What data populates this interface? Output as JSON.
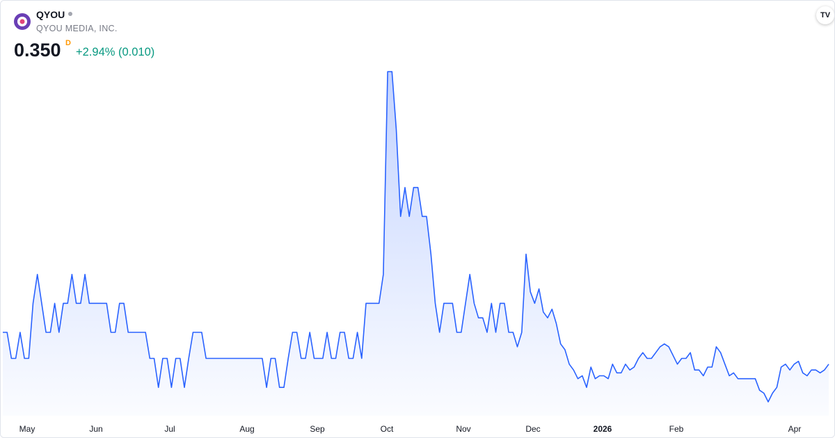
{
  "header": {
    "ticker": "QYOU",
    "company": "QYOU MEDIA, INC.",
    "price": "0.350",
    "interval": "D",
    "change": "+2.94% (0.010)"
  },
  "chart_data": {
    "type": "area",
    "x_axis_labels": [
      "May",
      "Jun",
      "Jul",
      "Aug",
      "Sep",
      "Oct",
      "Nov",
      "Dec",
      "2026",
      "Feb",
      "Apr"
    ],
    "color": "#2962ff",
    "values": [
      0.361,
      0.361,
      0.352,
      0.352,
      0.361,
      0.352,
      0.352,
      0.371,
      0.381,
      0.371,
      0.361,
      0.361,
      0.371,
      0.361,
      0.371,
      0.371,
      0.381,
      0.371,
      0.371,
      0.381,
      0.371,
      0.371,
      0.371,
      0.371,
      0.371,
      0.361,
      0.361,
      0.371,
      0.371,
      0.361,
      0.361,
      0.361,
      0.361,
      0.361,
      0.352,
      0.352,
      0.342,
      0.352,
      0.352,
      0.342,
      0.352,
      0.352,
      0.342,
      0.352,
      0.361,
      0.361,
      0.361,
      0.352,
      0.352,
      0.352,
      0.352,
      0.352,
      0.352,
      0.352,
      0.352,
      0.352,
      0.352,
      0.352,
      0.352,
      0.352,
      0.352,
      0.342,
      0.352,
      0.352,
      0.342,
      0.342,
      0.352,
      0.361,
      0.361,
      0.352,
      0.352,
      0.361,
      0.352,
      0.352,
      0.352,
      0.361,
      0.352,
      0.352,
      0.361,
      0.361,
      0.352,
      0.352,
      0.361,
      0.352,
      0.371,
      0.371,
      0.371,
      0.371,
      0.381,
      0.451,
      0.451,
      0.431,
      0.401,
      0.411,
      0.401,
      0.411,
      0.411,
      0.401,
      0.401,
      0.388,
      0.371,
      0.361,
      0.371,
      0.371,
      0.371,
      0.361,
      0.361,
      0.371,
      0.381,
      0.371,
      0.366,
      0.366,
      0.361,
      0.371,
      0.361,
      0.371,
      0.371,
      0.361,
      0.361,
      0.356,
      0.361,
      0.388,
      0.375,
      0.371,
      0.376,
      0.368,
      0.366,
      0.369,
      0.364,
      0.357,
      0.355,
      0.35,
      0.348,
      0.345,
      0.346,
      0.342,
      0.349,
      0.345,
      0.346,
      0.346,
      0.345,
      0.35,
      0.347,
      0.347,
      0.35,
      0.348,
      0.349,
      0.352,
      0.354,
      0.352,
      0.352,
      0.354,
      0.356,
      0.357,
      0.356,
      0.353,
      0.35,
      0.352,
      0.352,
      0.354,
      0.348,
      0.348,
      0.346,
      0.349,
      0.349,
      0.356,
      0.354,
      0.35,
      0.346,
      0.347,
      0.345,
      0.345,
      0.345,
      0.345,
      0.345,
      0.341,
      0.34,
      0.337,
      0.34,
      0.342,
      0.349,
      0.35,
      0.348,
      0.35,
      0.351,
      0.347,
      0.346,
      0.348,
      0.348,
      0.347,
      0.348,
      0.35
    ]
  }
}
